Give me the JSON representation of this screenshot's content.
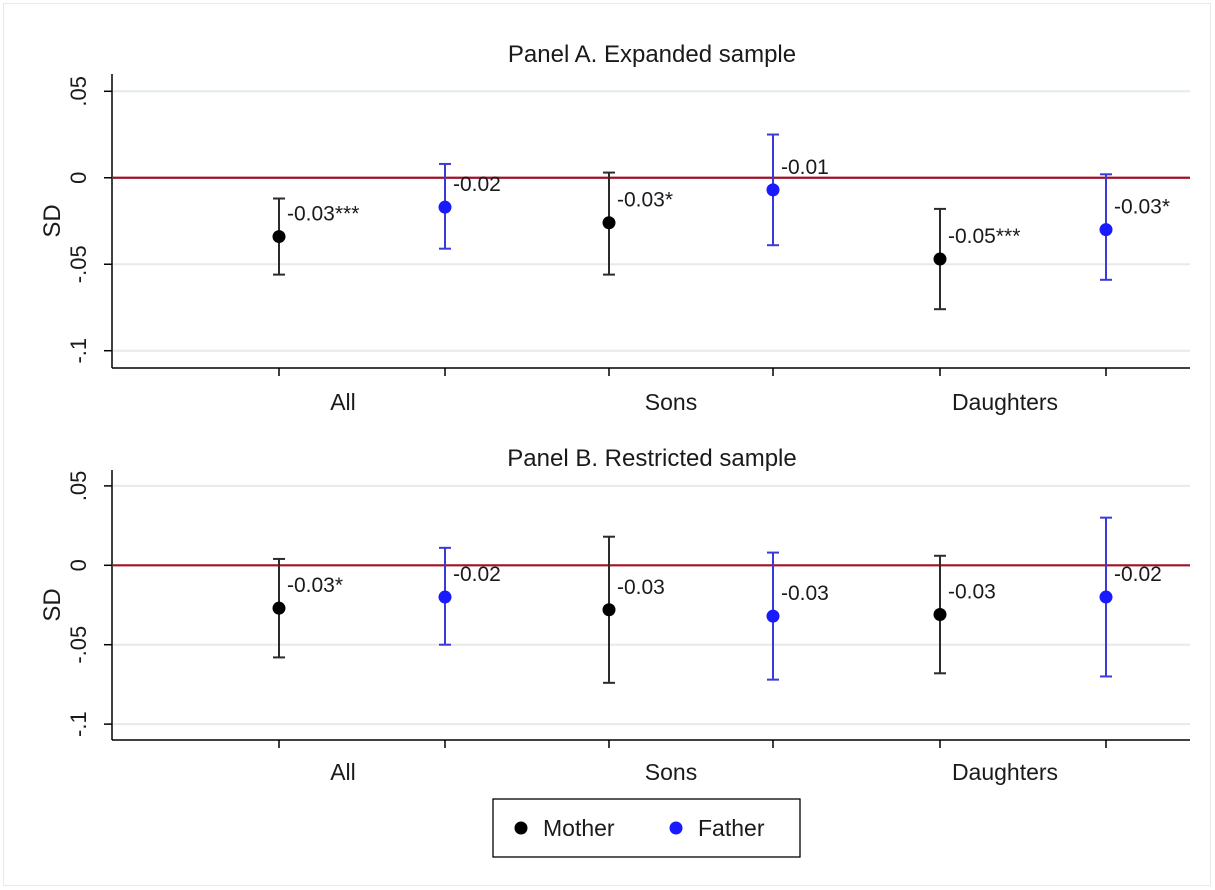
{
  "chart_data": [
    {
      "type": "scatter",
      "title": "Panel A. Expanded sample",
      "ylabel": "SD",
      "ylim": [
        -0.11,
        0.06
      ],
      "yticks": [
        0.05,
        0,
        -0.05,
        -0.1
      ],
      "ytick_labels": [
        ".05",
        "0",
        "-.05",
        "-.1"
      ],
      "categories": [
        "All",
        "Sons",
        "Daughters"
      ],
      "reference_line": 0,
      "grid": true,
      "series": [
        {
          "name": "Mother",
          "color": "#000000",
          "ci_color": "#2b2b2b",
          "values": [
            -0.034,
            -0.026,
            -0.047
          ],
          "ci_low": [
            -0.056,
            -0.056,
            -0.076
          ],
          "ci_high": [
            -0.012,
            0.003,
            -0.018
          ],
          "labels": [
            "-0.03***",
            "-0.03*",
            "-0.05***"
          ]
        },
        {
          "name": "Father",
          "color": "#1a1aff",
          "ci_color": "#3a3ad8",
          "values": [
            -0.017,
            -0.007,
            -0.03
          ],
          "ci_low": [
            -0.041,
            -0.039,
            -0.059
          ],
          "ci_high": [
            0.008,
            0.025,
            0.002
          ],
          "labels": [
            "-0.02",
            "-0.01",
            "-0.03*"
          ]
        }
      ]
    },
    {
      "type": "scatter",
      "title": "Panel B. Restricted sample",
      "ylabel": "SD",
      "ylim": [
        -0.11,
        0.06
      ],
      "yticks": [
        0.05,
        0,
        -0.05,
        -0.1
      ],
      "ytick_labels": [
        ".05",
        "0",
        "-.05",
        "-.1"
      ],
      "categories": [
        "All",
        "Sons",
        "Daughters"
      ],
      "reference_line": 0,
      "grid": true,
      "series": [
        {
          "name": "Mother",
          "color": "#000000",
          "ci_color": "#2b2b2b",
          "values": [
            -0.027,
            -0.028,
            -0.031
          ],
          "ci_low": [
            -0.058,
            -0.074,
            -0.068
          ],
          "ci_high": [
            0.004,
            0.018,
            0.006
          ],
          "labels": [
            "-0.03*",
            "-0.03",
            "-0.03"
          ]
        },
        {
          "name": "Father",
          "color": "#1a1aff",
          "ci_color": "#3a3ad8",
          "values": [
            -0.02,
            -0.032,
            -0.02
          ],
          "ci_low": [
            -0.05,
            -0.072,
            -0.07
          ],
          "ci_high": [
            0.011,
            0.008,
            0.03
          ],
          "labels": [
            "-0.02",
            "-0.03",
            "-0.02"
          ]
        }
      ]
    }
  ],
  "legend": {
    "position": "bottom-center",
    "items": [
      {
        "label": "Mother",
        "color": "#000000"
      },
      {
        "label": "Father",
        "color": "#1a1aff"
      }
    ]
  },
  "style": {
    "reference_line_color": "#a0102a",
    "grid_color": "#e4eaee",
    "axis_color": "#000000"
  }
}
